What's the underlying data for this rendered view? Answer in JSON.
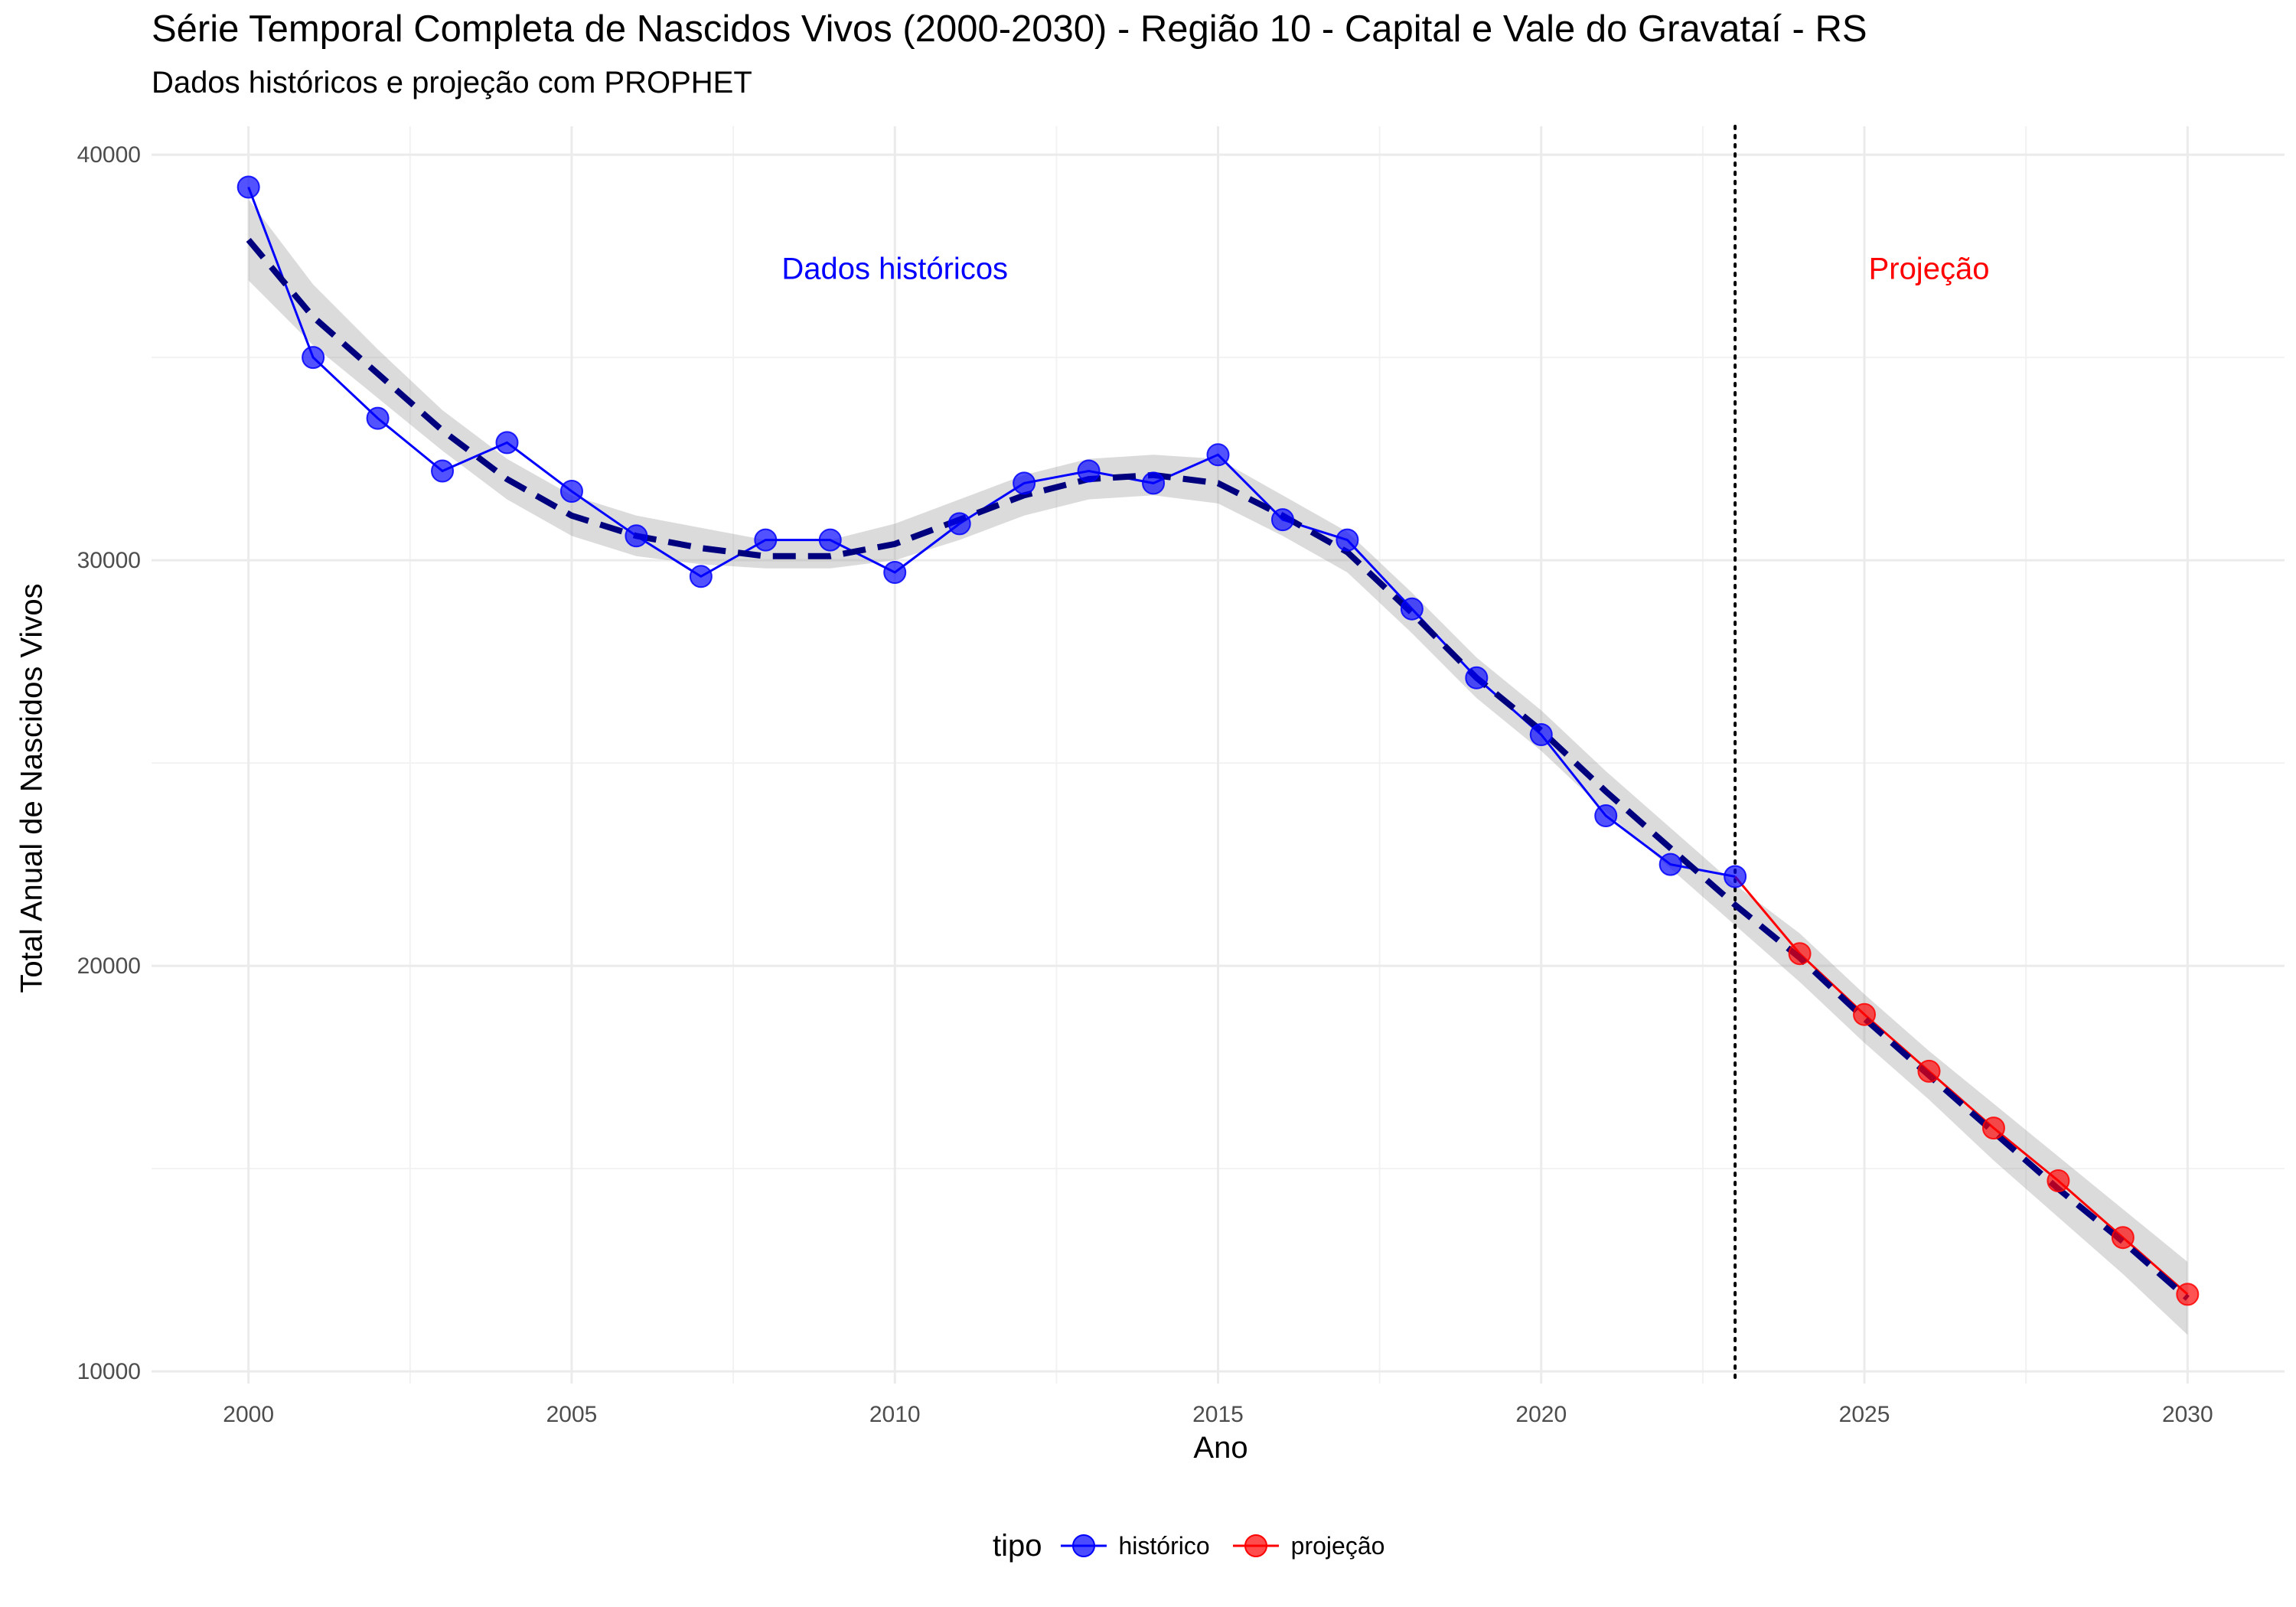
{
  "chart_data": {
    "type": "line",
    "title": "Série Temporal Completa de Nascidos Vivos (2000-2030) -  Região 10 - Capital e Vale do Gravataí - RS",
    "subtitle": "Dados históricos e projeção com PROPHET",
    "xlabel": "Ano",
    "ylabel": "Total Anual de Nascidos Vivos",
    "xlim": [
      1998.5,
      2031.5
    ],
    "ylim": [
      9700,
      40700
    ],
    "x_ticks": [
      2000,
      2005,
      2010,
      2015,
      2020,
      2025,
      2030
    ],
    "x_tick_labels": [
      "2000",
      "2005",
      "2010",
      "2015",
      "2020",
      "2025",
      "2030"
    ],
    "y_ticks": [
      10000,
      20000,
      30000,
      40000
    ],
    "y_tick_labels": [
      "10000",
      "20000",
      "30000",
      "40000"
    ],
    "grid": true,
    "legend": {
      "title": "tipo",
      "position": "bottom",
      "entries": [
        "histórico",
        "projeção"
      ]
    },
    "annotations": [
      {
        "text": "Dados históricos",
        "x": 2010,
        "y": 37200,
        "color": "#0000ff"
      },
      {
        "text": "Projeção",
        "x": 2026,
        "y": 37200,
        "color": "#ff0000"
      }
    ],
    "vline": {
      "x": 2023,
      "style": "dotted",
      "color": "#000000"
    },
    "series": [
      {
        "name": "histórico",
        "color": "#0000ff",
        "x": [
          2000,
          2001,
          2002,
          2003,
          2004,
          2005,
          2006,
          2007,
          2008,
          2009,
          2010,
          2011,
          2012,
          2013,
          2014,
          2015,
          2016,
          2017,
          2018,
          2019,
          2020,
          2021,
          2022,
          2023
        ],
        "y": [
          39200,
          35000,
          33500,
          32200,
          32900,
          31700,
          30600,
          29600,
          30500,
          30500,
          29700,
          30900,
          31900,
          32200,
          31900,
          32600,
          31000,
          30500,
          28800,
          27100,
          25700,
          23700,
          22500,
          22200
        ]
      },
      {
        "name": "projeção",
        "color": "#ff0000",
        "x": [
          2023,
          2024,
          2025,
          2026,
          2027,
          2028,
          2029,
          2030
        ],
        "y": [
          22200,
          20300,
          18800,
          17400,
          16000,
          14700,
          13300,
          11900
        ]
      }
    ],
    "trend": {
      "color": "#00007f",
      "x": [
        2000,
        2001,
        2002,
        2003,
        2004,
        2005,
        2006,
        2007,
        2008,
        2009,
        2010,
        2011,
        2012,
        2013,
        2014,
        2015,
        2016,
        2017,
        2018,
        2019,
        2020,
        2021,
        2022,
        2023,
        2024,
        2025,
        2026,
        2027,
        2028,
        2029,
        2030
      ],
      "y": [
        37900,
        36000,
        34600,
        33200,
        32000,
        31100,
        30600,
        30300,
        30100,
        30100,
        30400,
        31000,
        31600,
        32000,
        32100,
        31900,
        31100,
        30200,
        28700,
        27100,
        25800,
        24300,
        22900,
        21500,
        20200,
        18700,
        17300,
        15900,
        14500,
        13200,
        11800
      ],
      "band_lower": [
        36900,
        35300,
        34000,
        32700,
        31500,
        30600,
        30100,
        29900,
        29800,
        29800,
        30000,
        30500,
        31100,
        31500,
        31600,
        31400,
        30600,
        29700,
        28200,
        26600,
        25300,
        23800,
        22400,
        21000,
        19600,
        18100,
        16700,
        15200,
        13800,
        12400,
        10900
      ],
      "band_upper": [
        38900,
        36800,
        35200,
        33700,
        32500,
        31600,
        31100,
        30800,
        30500,
        30500,
        30900,
        31500,
        32100,
        32500,
        32600,
        32500,
        31600,
        30700,
        29200,
        27600,
        26300,
        24800,
        23400,
        22000,
        20800,
        19300,
        17900,
        16600,
        15300,
        14000,
        12700
      ]
    }
  }
}
